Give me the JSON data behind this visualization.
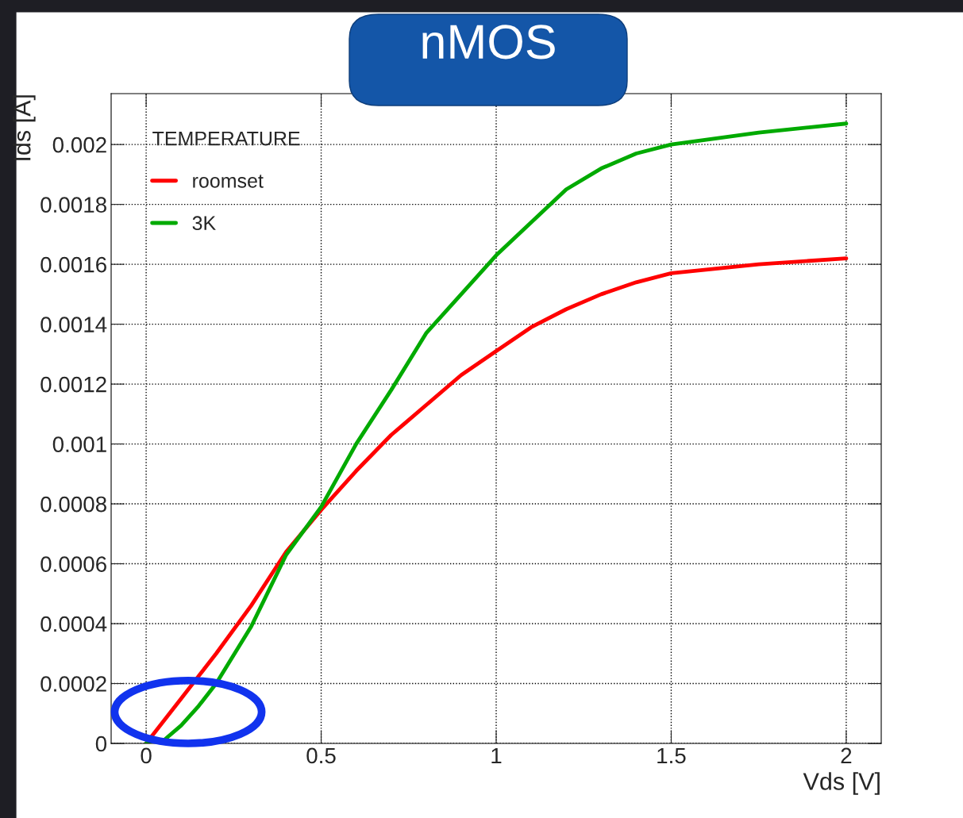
{
  "chart_data": {
    "type": "line",
    "title": "nMOS",
    "xlabel": "Vds [V]",
    "ylabel": "Ids [A]",
    "legend_title": "TEMPERATURE",
    "xlim": [
      -0.1,
      2.1
    ],
    "ylim": [
      0,
      0.00217
    ],
    "xticks": [
      0,
      0.5,
      1,
      1.5,
      2
    ],
    "yticks": [
      0,
      {
        "value": 0.0002,
        "label": "0.0002"
      },
      {
        "value": 0.0004,
        "label": "0.0004"
      },
      {
        "value": 0.0006,
        "label": "0.0006"
      },
      {
        "value": 0.0008,
        "label": "0.0008"
      },
      {
        "value": 0.001,
        "label": "0.001"
      },
      {
        "value": 0.0012,
        "label": "0.0012"
      },
      {
        "value": 0.0014,
        "label": "0.0014"
      },
      {
        "value": 0.0016,
        "label": "0.0016"
      },
      {
        "value": 0.0018,
        "label": "0.0018"
      },
      {
        "value": 0.002,
        "label": "0.002"
      }
    ],
    "grid": true,
    "legend": "top left",
    "marker": "none",
    "line_style": "solid",
    "series": [
      {
        "name": "roomset",
        "color": "#ff0000",
        "x": [
          0,
          0.1,
          0.2,
          0.3,
          0.4,
          0.5,
          0.6,
          0.7,
          0.8,
          0.9,
          1.0,
          1.1,
          1.2,
          1.3,
          1.4,
          1.5,
          1.75,
          2.0
        ],
        "values": [
          0,
          0.00015,
          0.0003,
          0.00046,
          0.00064,
          0.00078,
          0.00091,
          0.00103,
          0.00113,
          0.00123,
          0.00131,
          0.00139,
          0.00145,
          0.0015,
          0.00154,
          0.00157,
          0.0016,
          0.00162
        ]
      },
      {
        "name": "3K",
        "color": "#00aa00",
        "x": [
          0,
          0.05,
          0.1,
          0.15,
          0.2,
          0.3,
          0.4,
          0.5,
          0.6,
          0.7,
          0.8,
          0.9,
          1.0,
          1.1,
          1.2,
          1.3,
          1.4,
          1.5,
          1.75,
          2.0
        ],
        "values": [
          0,
          1e-05,
          6e-05,
          0.000125,
          0.0002,
          0.00039,
          0.00063,
          0.00079,
          0.001,
          0.00118,
          0.00137,
          0.0015,
          0.00163,
          0.00174,
          0.00185,
          0.00192,
          0.00197,
          0.002,
          0.00204,
          0.00207
        ]
      }
    ]
  }
}
